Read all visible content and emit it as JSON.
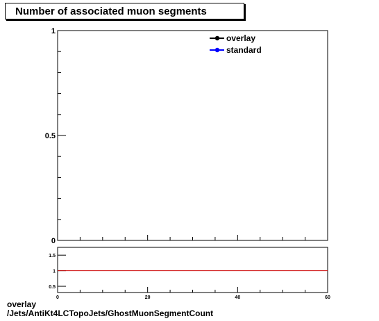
{
  "chart_data": [
    {
      "type": "line",
      "title": "Number of associated muon segments",
      "xlabel": "",
      "ylabel": "",
      "xlim": [
        0,
        60
      ],
      "ylim": [
        0,
        1
      ],
      "yticks": [
        {
          "value": 0,
          "label": "0"
        },
        {
          "value": 0.5,
          "label": "0.5"
        },
        {
          "value": 1,
          "label": "1"
        }
      ],
      "series": [
        {
          "name": "overlay",
          "color": "#000000",
          "x": [],
          "y": []
        },
        {
          "name": "standard",
          "color": "#0000ff",
          "x": [],
          "y": []
        }
      ],
      "legend": {
        "placement": "top-right"
      },
      "grid": false
    },
    {
      "type": "line",
      "title": "",
      "xlabel": "",
      "ylabel": "",
      "xlim": [
        0,
        60
      ],
      "ylim": [
        0.3,
        1.75
      ],
      "xticks": [
        {
          "value": 0,
          "label": "0"
        },
        {
          "value": 20,
          "label": "20"
        },
        {
          "value": 40,
          "label": "40"
        },
        {
          "value": 60,
          "label": "60"
        }
      ],
      "yticks": [
        {
          "value": 0.5,
          "label": "0.5"
        },
        {
          "value": 1,
          "label": "1"
        },
        {
          "value": 1.5,
          "label": "1.5"
        }
      ],
      "series": [
        {
          "name": "",
          "color": "#cc0000",
          "x": [
            0,
            60
          ],
          "y": [
            1,
            1
          ]
        }
      ],
      "grid": false
    }
  ],
  "footer": {
    "line1": "overlay",
    "line2": "/Jets/AntiKt4LCTopoJets/GhostMuonSegmentCount"
  }
}
